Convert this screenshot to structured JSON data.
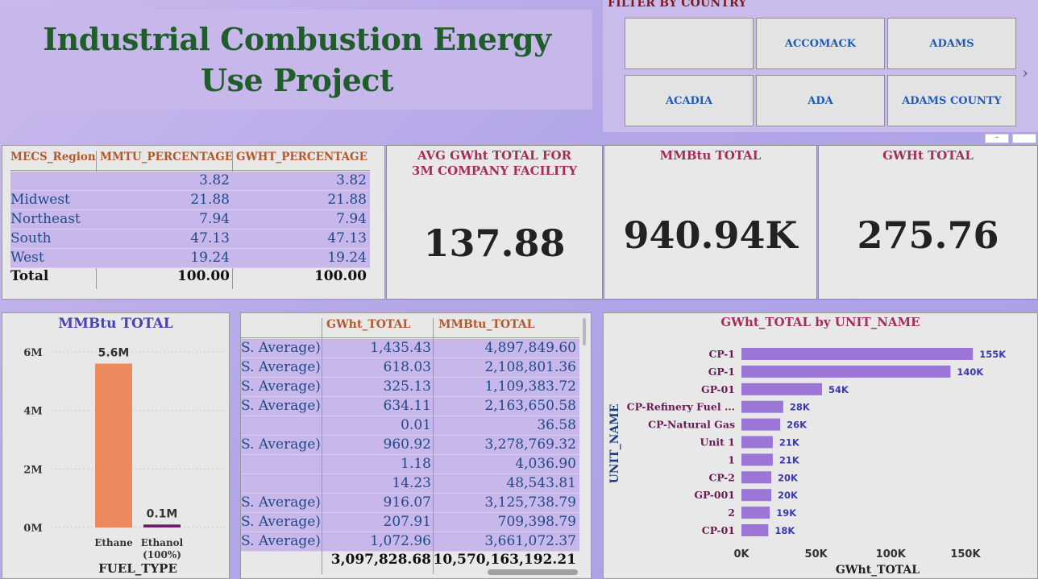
{
  "title": "Industrial Combustion Energy Use Project",
  "filter": {
    "heading": "FILTER BY COUNTRY",
    "buttons": [
      "",
      "ACCOMACK",
      "ADAMS",
      "ACADIA",
      "ADA",
      "ADAMS COUNTY"
    ],
    "next_icon": "chevron-right-icon"
  },
  "region_table": {
    "headers": [
      "MECS_Region",
      "MMTU_PERCENTAGE",
      "GWHT_PERCENTAGE"
    ],
    "rows": [
      {
        "region": "",
        "mmtu": "3.82",
        "gwht": "3.82"
      },
      {
        "region": "Midwest",
        "mmtu": "21.88",
        "gwht": "21.88"
      },
      {
        "region": "Northeast",
        "mmtu": "7.94",
        "gwht": "7.94"
      },
      {
        "region": "South",
        "mmtu": "47.13",
        "gwht": "47.13"
      },
      {
        "region": "West",
        "mmtu": "19.24",
        "gwht": "19.24"
      }
    ],
    "total": {
      "label": "Total",
      "mmtu": "100.00",
      "gwht": "100.00"
    }
  },
  "kpis": {
    "avg_gwht": {
      "title": "AVG GWht TOTAL FOR 3M COMPANY FACILITY",
      "value": "137.88"
    },
    "mmbtu_total": {
      "title": "MMBtu TOTAL",
      "value": "940.94K"
    },
    "gwht_total": {
      "title": "GWHt TOTAL",
      "value": "275.76"
    }
  },
  "fuel_chart": {
    "title": "MMBtu TOTAL",
    "xlabel": "FUEL_TYPE",
    "colors": [
      "#ec8a5e",
      "#6b1b6b"
    ],
    "chart_data": {
      "type": "bar",
      "categories": [
        "Ethane",
        "Ethanol (100%)"
      ],
      "values": [
        5.6,
        0.1
      ],
      "data_labels": [
        "5.6M",
        "0.1M"
      ],
      "ylim": [
        0,
        6
      ],
      "yticks": [
        "0M",
        "2M",
        "4M",
        "6M"
      ],
      "xlabel": "FUEL_TYPE",
      "ylabel": "",
      "grid": true
    }
  },
  "detail_table": {
    "headers": [
      "",
      "GWht_TOTAL",
      "MMBtu_TOTAL"
    ],
    "rows": [
      {
        "c1": "S. Average)",
        "c2": "1,435.43",
        "c3": "4,897,849.60"
      },
      {
        "c1": "S. Average)",
        "c2": "618.03",
        "c3": "2,108,801.36"
      },
      {
        "c1": "S. Average)",
        "c2": "325.13",
        "c3": "1,109,383.72"
      },
      {
        "c1": "S. Average)",
        "c2": "634.11",
        "c3": "2,163,650.58"
      },
      {
        "c1": "",
        "c2": "0.01",
        "c3": "36.58"
      },
      {
        "c1": "S. Average)",
        "c2": "960.92",
        "c3": "3,278,769.32"
      },
      {
        "c1": "",
        "c2": "1.18",
        "c3": "4,036.90"
      },
      {
        "c1": "",
        "c2": "14.23",
        "c3": "48,543.81"
      },
      {
        "c1": "S. Average)",
        "c2": "916.07",
        "c3": "3,125,738.79"
      },
      {
        "c1": "S. Average)",
        "c2": "207.91",
        "c3": "709,398.79"
      },
      {
        "c1": "S. Average)",
        "c2": "1,072.96",
        "c3": "3,661,072.37"
      }
    ],
    "total": {
      "c2": "3,097,828.68",
      "c3": "10,570,163,192.21"
    }
  },
  "unit_chart": {
    "title": "GWht_TOTAL by UNIT_NAME",
    "color": "#9b76d6",
    "label_color": "#3a3ab0",
    "chart_data": {
      "type": "bar",
      "orientation": "horizontal",
      "categories": [
        "CP-1",
        "GP-1",
        "GP-01",
        "CP-Refinery Fuel ...",
        "CP-Natural Gas",
        "Unit 1",
        "1",
        "CP-2",
        "GP-001",
        "2",
        "CP-01"
      ],
      "values": [
        155,
        140,
        54,
        28,
        26,
        21,
        21,
        20,
        20,
        19,
        18
      ],
      "data_labels": [
        "155K",
        "140K",
        "54K",
        "28K",
        "26K",
        "21K",
        "21K",
        "20K",
        "20K",
        "19K",
        "18K"
      ],
      "xlim": [
        0,
        170
      ],
      "xticks": [
        "0K",
        "50K",
        "100K",
        "150K"
      ],
      "xlabel": "GWht_TOTAL",
      "ylabel": "UNIT_NAME"
    }
  }
}
